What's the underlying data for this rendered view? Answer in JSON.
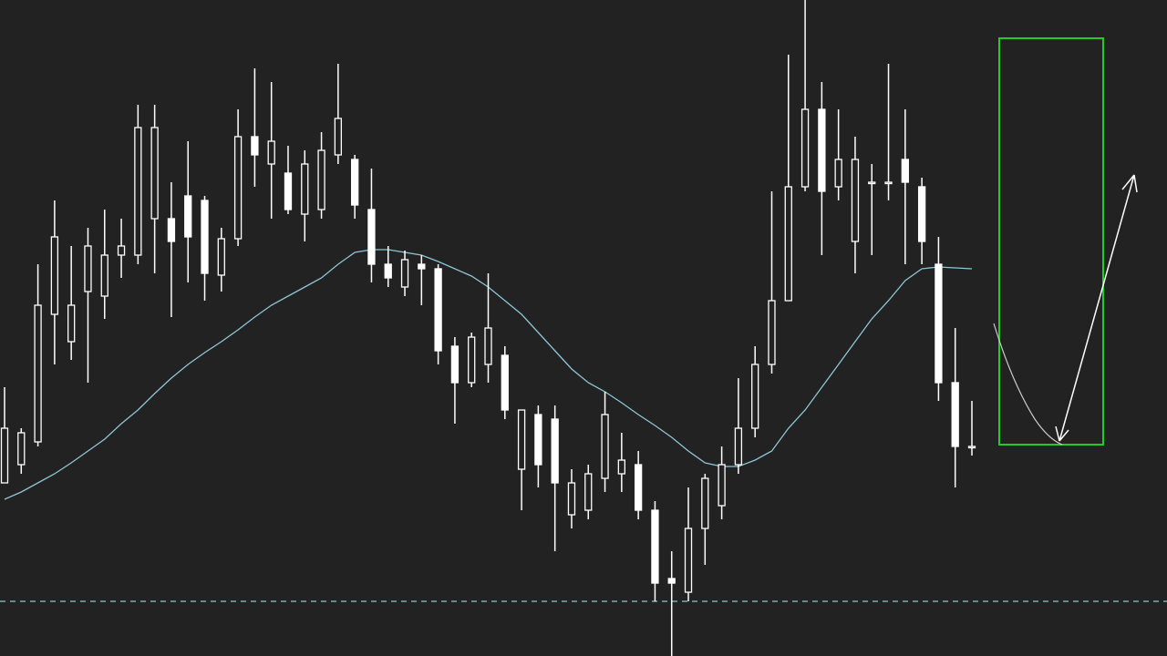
{
  "chart_data": {
    "type": "candlestick",
    "ylim": [
      0,
      720
    ],
    "background": "#222222",
    "candle_color": "#ffffff",
    "open": [
      190,
      210,
      235,
      375,
      345,
      400,
      395,
      440,
      440,
      480,
      480,
      505,
      500,
      418,
      458,
      570,
      540,
      530,
      485,
      490,
      550,
      545,
      490,
      430,
      405,
      430,
      425,
      340,
      300,
      320,
      330,
      205,
      265,
      260,
      155,
      160,
      195,
      200,
      210,
      160,
      85,
      70,
      140,
      165,
      210,
      250,
      320,
      390,
      515,
      600,
      515,
      455,
      520,
      520,
      545,
      515,
      430,
      300,
      230
    ],
    "high": [
      295,
      250,
      430,
      500,
      450,
      470,
      490,
      480,
      605,
      605,
      520,
      565,
      505,
      470,
      600,
      645,
      630,
      560,
      555,
      575,
      650,
      550,
      535,
      450,
      445,
      440,
      430,
      350,
      355,
      420,
      340,
      270,
      275,
      275,
      205,
      210,
      290,
      245,
      225,
      170,
      115,
      185,
      200,
      230,
      305,
      340,
      510,
      660,
      720,
      630,
      600,
      570,
      540,
      650,
      600,
      525,
      460,
      360,
      280
    ],
    "low": [
      190,
      200,
      230,
      320,
      325,
      300,
      370,
      415,
      430,
      420,
      372,
      410,
      390,
      400,
      450,
      515,
      480,
      485,
      455,
      480,
      540,
      480,
      410,
      405,
      395,
      385,
      320,
      255,
      295,
      300,
      260,
      160,
      185,
      115,
      140,
      150,
      180,
      180,
      150,
      60,
      0,
      60,
      100,
      150,
      200,
      240,
      310,
      390,
      510,
      440,
      500,
      420,
      440,
      500,
      430,
      430,
      280,
      185,
      220
    ],
    "close": [
      250,
      245,
      385,
      460,
      385,
      450,
      440,
      450,
      580,
      580,
      455,
      460,
      420,
      458,
      570,
      550,
      565,
      490,
      540,
      555,
      590,
      495,
      430,
      415,
      435,
      425,
      335,
      300,
      350,
      360,
      270,
      270,
      210,
      190,
      190,
      200,
      265,
      215,
      160,
      80,
      80,
      140,
      195,
      210,
      250,
      320,
      390,
      515,
      600,
      510,
      545,
      545,
      520,
      520,
      520,
      455,
      300,
      230,
      230
    ],
    "ma": {
      "color": "#8ec5d6",
      "values": [
        172,
        180,
        190,
        200,
        212,
        225,
        238,
        255,
        270,
        288,
        305,
        320,
        333,
        345,
        358,
        372,
        385,
        395,
        405,
        415,
        430,
        443,
        446,
        446,
        443,
        440,
        433,
        425,
        417,
        405,
        390,
        375,
        355,
        335,
        315,
        300,
        290,
        278,
        265,
        253,
        240,
        225,
        212,
        208,
        208,
        215,
        225,
        250,
        270,
        295,
        320,
        345,
        370,
        390,
        412,
        425,
        427,
        426,
        425
      ]
    },
    "level": {
      "value": 60,
      "color": "#8ec5d6"
    }
  }
}
